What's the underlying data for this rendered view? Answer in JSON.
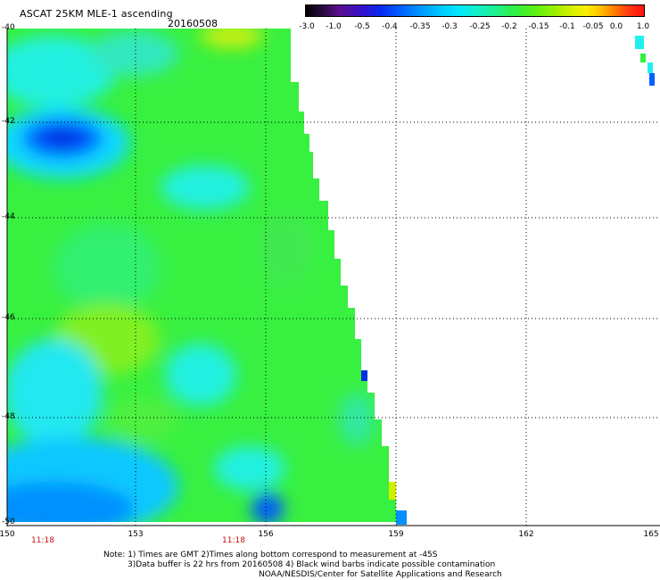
{
  "title": "ASCAT 25KM MLE-1 ascending",
  "date": "20160508",
  "colorbar": {
    "labels": [
      "-3.0",
      "-1.0",
      "-0.5",
      "-0.4",
      "-0.35",
      "-0.3",
      "-0.25",
      "-0.2",
      "-0.15",
      "-0.1",
      "-0.05",
      "0.0",
      "1.0"
    ]
  },
  "axes": {
    "lon_ticks": [
      "150",
      "153",
      "156",
      "159",
      "162",
      "165"
    ],
    "lat_ticks": [
      "-40",
      "-42",
      "-44",
      "-46",
      "-48",
      "-50"
    ]
  },
  "times": [
    "11:18",
    "11:18"
  ],
  "notes": [
    "Note: 1) Times are GMT 2)Times along bottom correspond to measurement at -45S",
    "3)Data buffer is 22 hrs from 20160508 4) Black wind barbs indicate possible contamination",
    "NOAA/NESDIS/Center for Satellite Applications and Research"
  ],
  "colors": {
    "green": "#30f030",
    "cyan": "#20f8f0",
    "blue": "#0048ff",
    "yellow": "#e0f000",
    "grid": "#000000"
  },
  "swath_description_icon": "data-swath"
}
